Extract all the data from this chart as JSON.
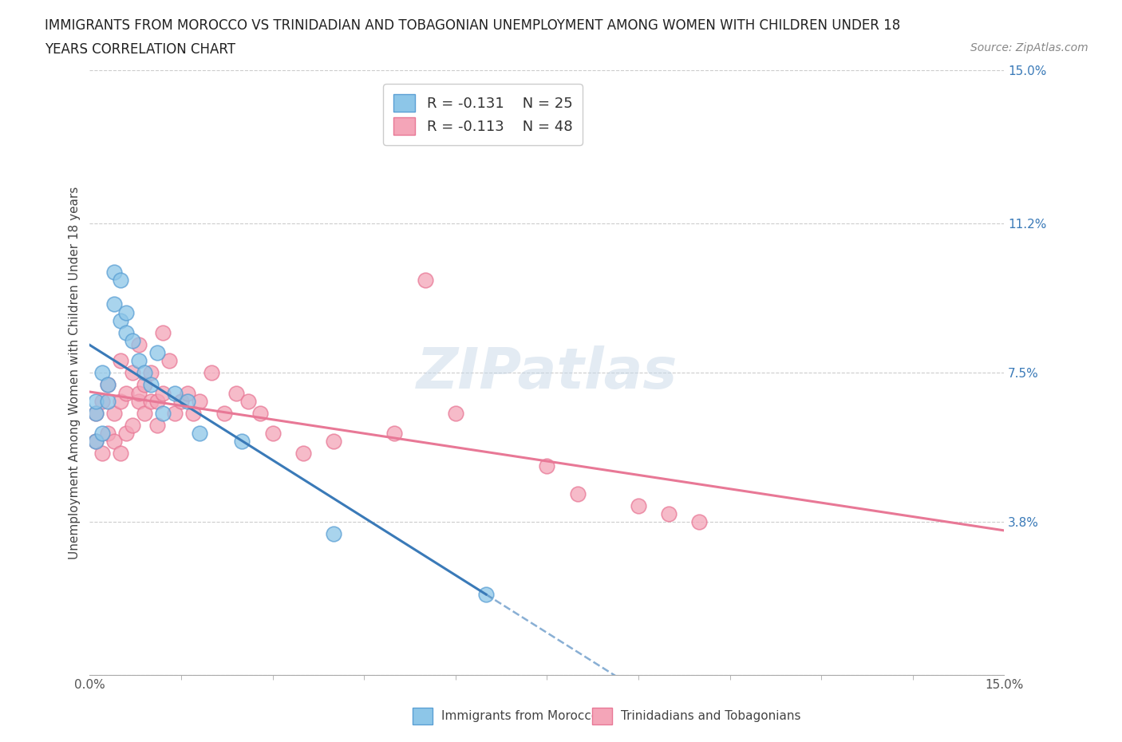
{
  "title_line1": "IMMIGRANTS FROM MOROCCO VS TRINIDADIAN AND TOBAGONIAN UNEMPLOYMENT AMONG WOMEN WITH CHILDREN UNDER 18",
  "title_line2": "YEARS CORRELATION CHART",
  "source": "Source: ZipAtlas.com",
  "ylabel": "Unemployment Among Women with Children Under 18 years",
  "xlim": [
    0.0,
    0.15
  ],
  "ylim": [
    0.0,
    0.15
  ],
  "yticks": [
    0.0,
    0.038,
    0.075,
    0.112,
    0.15
  ],
  "yticklabels": [
    "",
    "3.8%",
    "7.5%",
    "11.2%",
    "15.0%"
  ],
  "grid_color": "#cccccc",
  "background_color": "#ffffff",
  "blue_color": "#8dc6e8",
  "pink_color": "#f4a5b8",
  "blue_edge_color": "#5a9fd4",
  "pink_edge_color": "#e87896",
  "blue_line_color": "#3a7ab8",
  "pink_line_color": "#e87896",
  "title_color": "#222222",
  "tick_color": "#3a7ab8",
  "legend_R1": "R = -0.131",
  "legend_N1": "N = 25",
  "legend_R2": "R = -0.113",
  "legend_N2": "N = 48",
  "morocco_x": [
    0.001,
    0.001,
    0.001,
    0.002,
    0.002,
    0.003,
    0.003,
    0.004,
    0.004,
    0.005,
    0.005,
    0.006,
    0.006,
    0.007,
    0.008,
    0.009,
    0.01,
    0.011,
    0.012,
    0.014,
    0.016,
    0.018,
    0.025,
    0.04,
    0.065
  ],
  "morocco_y": [
    0.058,
    0.065,
    0.068,
    0.06,
    0.075,
    0.068,
    0.072,
    0.1,
    0.092,
    0.088,
    0.098,
    0.085,
    0.09,
    0.083,
    0.078,
    0.075,
    0.072,
    0.08,
    0.065,
    0.07,
    0.068,
    0.06,
    0.058,
    0.035,
    0.02
  ],
  "trinidad_x": [
    0.001,
    0.001,
    0.002,
    0.002,
    0.003,
    0.003,
    0.004,
    0.004,
    0.005,
    0.005,
    0.005,
    0.006,
    0.006,
    0.007,
    0.007,
    0.008,
    0.008,
    0.008,
    0.009,
    0.009,
    0.01,
    0.01,
    0.011,
    0.011,
    0.012,
    0.012,
    0.013,
    0.014,
    0.015,
    0.016,
    0.017,
    0.018,
    0.02,
    0.022,
    0.024,
    0.026,
    0.028,
    0.03,
    0.035,
    0.04,
    0.05,
    0.055,
    0.06,
    0.075,
    0.08,
    0.09,
    0.095,
    0.1
  ],
  "trinidad_y": [
    0.058,
    0.065,
    0.055,
    0.068,
    0.06,
    0.072,
    0.058,
    0.065,
    0.055,
    0.068,
    0.078,
    0.06,
    0.07,
    0.062,
    0.075,
    0.068,
    0.07,
    0.082,
    0.065,
    0.072,
    0.068,
    0.075,
    0.068,
    0.062,
    0.085,
    0.07,
    0.078,
    0.065,
    0.068,
    0.07,
    0.065,
    0.068,
    0.075,
    0.065,
    0.07,
    0.068,
    0.065,
    0.06,
    0.055,
    0.058,
    0.06,
    0.098,
    0.065,
    0.052,
    0.045,
    0.042,
    0.04,
    0.038
  ]
}
